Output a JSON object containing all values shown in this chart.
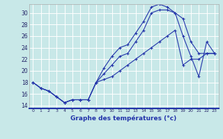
{
  "xlabel": "Graphe des températures (°c)",
  "bg_color": "#c8e8e8",
  "line_color": "#2233aa",
  "grid_color": "#ffffff",
  "xlim": [
    -0.5,
    23.5
  ],
  "ylim": [
    13.5,
    31.5
  ],
  "yticks": [
    14,
    16,
    18,
    20,
    22,
    24,
    26,
    28,
    30
  ],
  "xticks": [
    0,
    1,
    2,
    3,
    4,
    5,
    6,
    7,
    8,
    9,
    10,
    11,
    12,
    13,
    14,
    15,
    16,
    17,
    18,
    19,
    20,
    21,
    22,
    23
  ],
  "line1_x": [
    0,
    1,
    2,
    3,
    4,
    5,
    6,
    7,
    8,
    9,
    10,
    11,
    12,
    13,
    14,
    15,
    16,
    17,
    18,
    19,
    20,
    21,
    22,
    23
  ],
  "line1_y": [
    18,
    17,
    16.5,
    15.5,
    14.5,
    15,
    15,
    15,
    18,
    20.5,
    22.5,
    24,
    24.5,
    26.5,
    28.5,
    31,
    31.5,
    31,
    30,
    29,
    25,
    23,
    23,
    23
  ],
  "line2_x": [
    0,
    1,
    2,
    3,
    4,
    5,
    6,
    7,
    8,
    9,
    10,
    11,
    12,
    13,
    14,
    15,
    16,
    17,
    18,
    19,
    20,
    21,
    22,
    23
  ],
  "line2_y": [
    18,
    17,
    16.5,
    15.5,
    14.5,
    15,
    15,
    15,
    18,
    19.5,
    21,
    22.5,
    23,
    25,
    27,
    30,
    30.5,
    30.5,
    30,
    26,
    22.5,
    19,
    25,
    23
  ],
  "line3_x": [
    0,
    1,
    2,
    3,
    4,
    5,
    6,
    7,
    8,
    9,
    10,
    11,
    12,
    13,
    14,
    15,
    16,
    17,
    18,
    19,
    20,
    21,
    22,
    23
  ],
  "line3_y": [
    18,
    17,
    16.5,
    15.5,
    14.5,
    15,
    15,
    15,
    18,
    18.5,
    19,
    20,
    21,
    22,
    23,
    24,
    25,
    26,
    27,
    21,
    22,
    22,
    23,
    23
  ]
}
